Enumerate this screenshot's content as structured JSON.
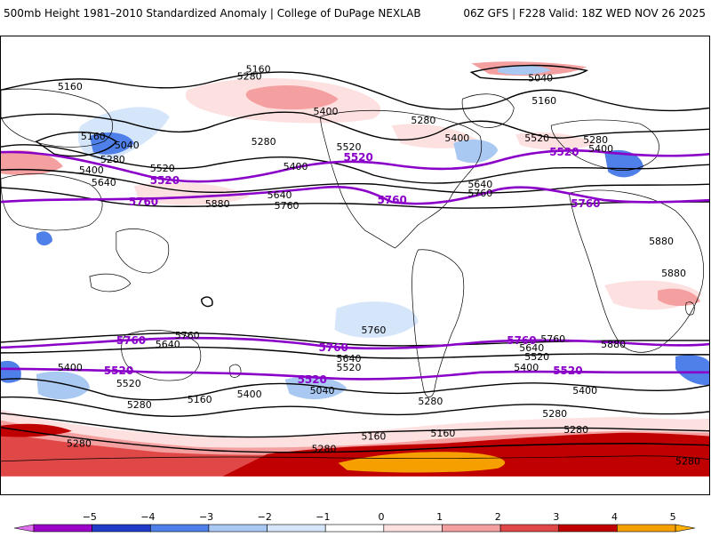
{
  "header": {
    "title": "500mb Height 1981–2010 Standardized Anomaly | College of DuPage NEXLAB",
    "run_info": "06Z GFS | F228 Valid: 18Z WED NOV 26 2025"
  },
  "contour_labels": {
    "l5160": "5160",
    "l5040": "5040",
    "l5280": "5280",
    "l5400": "5400",
    "l5520": "5520",
    "l5640": "5640",
    "l5760": "5760",
    "l5880": "5880"
  },
  "colorbar": {
    "ticks": [
      "−5",
      "−4",
      "−3",
      "−2",
      "−1",
      "0",
      "1",
      "2",
      "3",
      "4",
      "5"
    ],
    "colors": [
      "#9a00c8",
      "#1e3cc8",
      "#4f7fe8",
      "#a9c8f2",
      "#d6e6fa",
      "#ffffff",
      "#fde0e0",
      "#f4a0a0",
      "#e04848",
      "#c00000",
      "#f5a000"
    ],
    "end_low": "#e070f0",
    "end_high": "#ffb000"
  }
}
